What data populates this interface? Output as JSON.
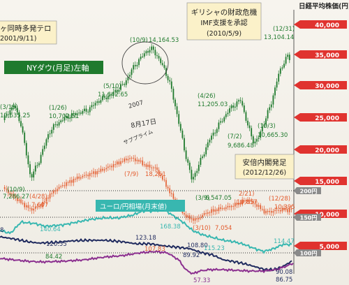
{
  "chart_data": {
    "type": "line",
    "right_axis_title": "日経平均株価(円)",
    "right_axis_ticks": [
      40000,
      35000,
      30000,
      25000,
      20000,
      15000,
      10000,
      5000
    ],
    "right_axis_tick_labels": [
      "40,000",
      "35,000",
      "30,000",
      "25,000",
      "20,000",
      "15,000",
      "10,000",
      "5,000"
    ],
    "yen_ticks": [
      200,
      150,
      100
    ],
    "yen_tick_labels": [
      "200円",
      "150円",
      "100円"
    ],
    "colors": {
      "nydow": "#1f7a2d",
      "nikkei": "#e35a2c",
      "euro_yen": "#38b7b0",
      "dollar_yen": "#1f2a5e",
      "purple": "#8b2f8f",
      "tick_red": "#e0332f"
    },
    "series": [
      {
        "name": "NYダウ(月足)左軸",
        "key": "nydow"
      },
      {
        "name": "ユーロ/円相場(月末値)",
        "key": "euro_yen"
      }
    ],
    "annotations": [
      {
        "key": "sep11",
        "lines": [
          "ヶ同時多発テロ",
          "2001/9/11)"
        ]
      },
      {
        "key": "greece",
        "lines": [
          "ギリシャの財政危機",
          "IMF支援を承認",
          "(2010/5/9)"
        ]
      },
      {
        "key": "abe",
        "lines": [
          "安倍内閣発足",
          "(2012/12/26)"
        ]
      },
      {
        "key": "handwritten",
        "lines": [
          "2007",
          "8月17日",
          "サブプライム"
        ]
      }
    ],
    "labels": [
      {
        "key": "a01",
        "text": "(3/19)"
      },
      {
        "key": "a02",
        "text": "10,635.25"
      },
      {
        "key": "a03",
        "text": "(1/26)"
      },
      {
        "key": "a04",
        "text": "10,702.51"
      },
      {
        "key": "a05",
        "text": "(5/10)"
      },
      {
        "key": "a06",
        "text": "11,642.65"
      },
      {
        "key": "a07",
        "text": "(10/9)"
      },
      {
        "key": "a08",
        "text": "14,164.53"
      },
      {
        "key": "a09",
        "text": "(4/26)"
      },
      {
        "key": "a10",
        "text": "11,205.03"
      },
      {
        "key": "a11",
        "text": "(10/3)"
      },
      {
        "key": "a12",
        "text": "10,665.30"
      },
      {
        "key": "a13",
        "text": "(7/2)"
      },
      {
        "key": "a14",
        "text": "9,686.48"
      },
      {
        "key": "a15",
        "text": "(12/31)"
      },
      {
        "key": "a16",
        "text": "13,104.14"
      },
      {
        "key": "a17",
        "text": "(10/9)"
      },
      {
        "key": "a18",
        "text": "7,286.27"
      },
      {
        "key": "a19",
        "text": "(4/28)"
      },
      {
        "key": "a20",
        "text": "7,607"
      },
      {
        "key": "a21",
        "text": "(7/9)"
      },
      {
        "key": "a22",
        "text": "18,261"
      },
      {
        "key": "a23",
        "text": "(3/9)"
      },
      {
        "key": "a24",
        "text": "6,547.05"
      },
      {
        "key": "a25",
        "text": "2/21)"
      },
      {
        "key": "a26",
        "text": "10,857"
      },
      {
        "key": "a27",
        "text": "(12/28)"
      },
      {
        "key": "a28",
        "text": "10,395"
      },
      {
        "key": "a29",
        "text": "(3/10)"
      },
      {
        "key": "a30",
        "text": "7,054"
      },
      {
        "key": "a31",
        "text": "140.64"
      },
      {
        "key": "a32",
        "text": "120.55"
      },
      {
        "key": "a33",
        "text": "123.18"
      },
      {
        "key": "a34",
        "text": "168.38"
      },
      {
        "key": "a35",
        "text": "108.80"
      },
      {
        "key": "a36",
        "text": "115.23"
      },
      {
        "key": "a37",
        "text": "114.47"
      },
      {
        "key": "a38",
        "text": "84.42"
      },
      {
        "key": "a39",
        "text": "107.83"
      },
      {
        "key": "a40",
        "text": "89.92"
      },
      {
        "key": "a41",
        "text": "57.33"
      },
      {
        "key": "a42",
        "text": "90.08"
      },
      {
        "key": "a43",
        "text": "86.75"
      },
      {
        "key": "a44",
        "text": "8"
      }
    ]
  }
}
